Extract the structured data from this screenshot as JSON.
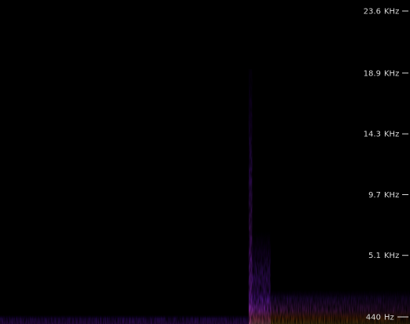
{
  "chart_data": {
    "type": "heatmap",
    "title": "",
    "xlabel": "",
    "ylabel": "",
    "y_unit_labels": [
      "KHz",
      "Hz"
    ],
    "y_ticks": [
      {
        "value": "23.6",
        "unit": "KHz",
        "khz": 23.6
      },
      {
        "value": "18.9",
        "unit": "KHz",
        "khz": 18.9
      },
      {
        "value": "14.3",
        "unit": "KHz",
        "khz": 14.3
      },
      {
        "value": "9.7",
        "unit": "KHz",
        "khz": 9.7
      },
      {
        "value": "5.1",
        "unit": "KHz",
        "khz": 5.1
      },
      {
        "value": "440",
        "unit": "Hz",
        "khz": 0.44
      }
    ],
    "ylim_khz": [
      0.44,
      23.6
    ],
    "x_normalized_range": [
      0,
      1
    ],
    "colormap": [
      "#000000",
      "#3a0a8c",
      "#7a1ec8",
      "#c23cc8",
      "#ff6a1a",
      "#ffb830"
    ],
    "events": [
      {
        "name": "baseline-hum",
        "x_start": 0.0,
        "x_end": 0.61,
        "max_khz": 0.6,
        "intensity": 0.55
      },
      {
        "name": "onset-transient",
        "x_start": 0.607,
        "x_end": 0.615,
        "max_khz": 19.2,
        "intensity": 0.6
      },
      {
        "name": "burst-mid-band",
        "x_start": 0.607,
        "x_end": 0.66,
        "max_khz": 7.0,
        "intensity": 0.6
      },
      {
        "name": "decay-low-band",
        "x_start": 0.607,
        "x_end": 1.0,
        "max_khz": 2.5,
        "intensity": 0.85
      }
    ]
  }
}
